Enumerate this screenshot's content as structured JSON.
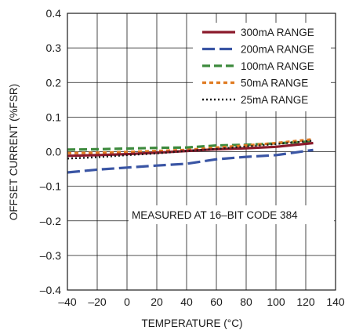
{
  "chart_data": {
    "type": "line",
    "title": "",
    "xlabel": "TEMPERATURE (°C)",
    "ylabel": "OFFSET CURRENT (%FSR)",
    "xlim": [
      -40,
      140
    ],
    "ylim": [
      -0.4,
      0.4
    ],
    "x_ticks": [
      -40,
      -20,
      0,
      20,
      40,
      60,
      80,
      100,
      120,
      140
    ],
    "y_ticks": [
      -0.4,
      -0.3,
      -0.2,
      -0.1,
      0.0,
      0.1,
      0.2,
      0.3,
      0.4
    ],
    "x_tick_labels": [
      "–40",
      "–20",
      "0",
      "20",
      "40",
      "60",
      "80",
      "100",
      "120",
      "140"
    ],
    "y_tick_labels": [
      "–0.4",
      "–0.3",
      "–0.2",
      "–0.1",
      "0.0",
      "0.1",
      "0.2",
      "0.3",
      "0.4"
    ],
    "grid": true,
    "legend_position": "top-right",
    "annotation": "MEASURED AT 16–BIT CODE 384",
    "series": [
      {
        "name": "300mA RANGE",
        "color": "#8b1a2b",
        "dash": "solid",
        "x": [
          -40,
          -20,
          0,
          20,
          40,
          60,
          80,
          100,
          125
        ],
        "y": [
          -0.012,
          -0.01,
          -0.007,
          -0.003,
          0.002,
          0.007,
          0.01,
          0.014,
          0.025
        ]
      },
      {
        "name": "200mA RANGE",
        "color": "#3a55a4",
        "dash": "long",
        "x": [
          -40,
          -20,
          0,
          20,
          40,
          60,
          80,
          100,
          125
        ],
        "y": [
          -0.06,
          -0.052,
          -0.046,
          -0.04,
          -0.035,
          -0.022,
          -0.015,
          -0.01,
          0.005
        ]
      },
      {
        "name": "100mA RANGE",
        "color": "#3d8a3d",
        "dash": "medium",
        "x": [
          -40,
          -20,
          0,
          20,
          40,
          60,
          80,
          100,
          125
        ],
        "y": [
          0.006,
          0.007,
          0.009,
          0.011,
          0.012,
          0.018,
          0.02,
          0.024,
          0.03
        ]
      },
      {
        "name": "50mA RANGE",
        "color": "#e07b22",
        "dash": "short",
        "x": [
          -40,
          -20,
          0,
          20,
          40,
          60,
          80,
          100,
          125
        ],
        "y": [
          -0.004,
          -0.003,
          -0.001,
          0.002,
          0.005,
          0.012,
          0.018,
          0.025,
          0.036
        ]
      },
      {
        "name": "25mA RANGE",
        "color": "#1a1a1a",
        "dash": "dot",
        "x": [
          -40,
          -20,
          0,
          20,
          40,
          60,
          80,
          100,
          125
        ],
        "y": [
          -0.02,
          -0.016,
          -0.01,
          -0.005,
          0.002,
          0.008,
          0.015,
          0.022,
          0.032
        ]
      }
    ]
  }
}
